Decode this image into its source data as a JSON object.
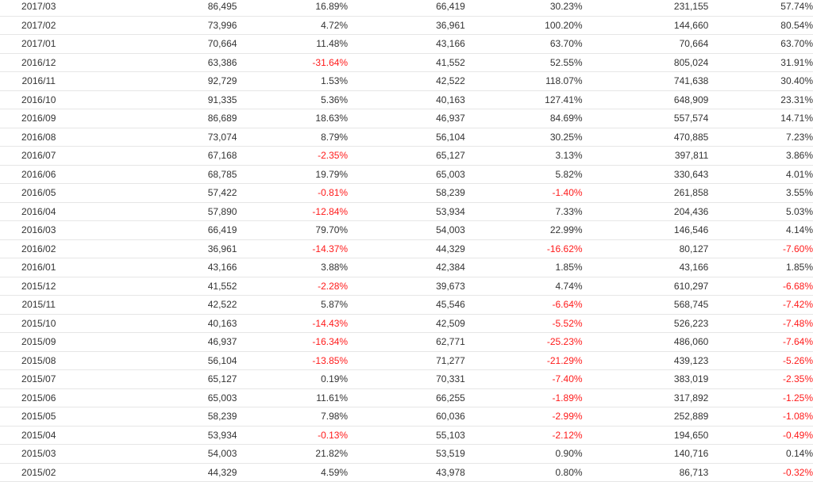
{
  "colors": {
    "text": "#333333",
    "negative": "#ff1a1a",
    "row_border": "#e6e6e6"
  },
  "rows": [
    {
      "date": "2017/03",
      "v1": "86,495",
      "p1": "16.89%",
      "v2": "66,419",
      "p2": "30.23%",
      "v3": "231,155",
      "p3": "57.74%"
    },
    {
      "date": "2017/02",
      "v1": "73,996",
      "p1": "4.72%",
      "v2": "36,961",
      "p2": "100.20%",
      "v3": "144,660",
      "p3": "80.54%"
    },
    {
      "date": "2017/01",
      "v1": "70,664",
      "p1": "11.48%",
      "v2": "43,166",
      "p2": "63.70%",
      "v3": "70,664",
      "p3": "63.70%"
    },
    {
      "date": "2016/12",
      "v1": "63,386",
      "p1": "-31.64%",
      "v2": "41,552",
      "p2": "52.55%",
      "v3": "805,024",
      "p3": "31.91%"
    },
    {
      "date": "2016/11",
      "v1": "92,729",
      "p1": "1.53%",
      "v2": "42,522",
      "p2": "118.07%",
      "v3": "741,638",
      "p3": "30.40%"
    },
    {
      "date": "2016/10",
      "v1": "91,335",
      "p1": "5.36%",
      "v2": "40,163",
      "p2": "127.41%",
      "v3": "648,909",
      "p3": "23.31%"
    },
    {
      "date": "2016/09",
      "v1": "86,689",
      "p1": "18.63%",
      "v2": "46,937",
      "p2": "84.69%",
      "v3": "557,574",
      "p3": "14.71%"
    },
    {
      "date": "2016/08",
      "v1": "73,074",
      "p1": "8.79%",
      "v2": "56,104",
      "p2": "30.25%",
      "v3": "470,885",
      "p3": "7.23%"
    },
    {
      "date": "2016/07",
      "v1": "67,168",
      "p1": "-2.35%",
      "v2": "65,127",
      "p2": "3.13%",
      "v3": "397,811",
      "p3": "3.86%"
    },
    {
      "date": "2016/06",
      "v1": "68,785",
      "p1": "19.79%",
      "v2": "65,003",
      "p2": "5.82%",
      "v3": "330,643",
      "p3": "4.01%"
    },
    {
      "date": "2016/05",
      "v1": "57,422",
      "p1": "-0.81%",
      "v2": "58,239",
      "p2": "-1.40%",
      "v3": "261,858",
      "p3": "3.55%"
    },
    {
      "date": "2016/04",
      "v1": "57,890",
      "p1": "-12.84%",
      "v2": "53,934",
      "p2": "7.33%",
      "v3": "204,436",
      "p3": "5.03%"
    },
    {
      "date": "2016/03",
      "v1": "66,419",
      "p1": "79.70%",
      "v2": "54,003",
      "p2": "22.99%",
      "v3": "146,546",
      "p3": "4.14%"
    },
    {
      "date": "2016/02",
      "v1": "36,961",
      "p1": "-14.37%",
      "v2": "44,329",
      "p2": "-16.62%",
      "v3": "80,127",
      "p3": "-7.60%"
    },
    {
      "date": "2016/01",
      "v1": "43,166",
      "p1": "3.88%",
      "v2": "42,384",
      "p2": "1.85%",
      "v3": "43,166",
      "p3": "1.85%"
    },
    {
      "date": "2015/12",
      "v1": "41,552",
      "p1": "-2.28%",
      "v2": "39,673",
      "p2": "4.74%",
      "v3": "610,297",
      "p3": "-6.68%"
    },
    {
      "date": "2015/11",
      "v1": "42,522",
      "p1": "5.87%",
      "v2": "45,546",
      "p2": "-6.64%",
      "v3": "568,745",
      "p3": "-7.42%"
    },
    {
      "date": "2015/10",
      "v1": "40,163",
      "p1": "-14.43%",
      "v2": "42,509",
      "p2": "-5.52%",
      "v3": "526,223",
      "p3": "-7.48%"
    },
    {
      "date": "2015/09",
      "v1": "46,937",
      "p1": "-16.34%",
      "v2": "62,771",
      "p2": "-25.23%",
      "v3": "486,060",
      "p3": "-7.64%"
    },
    {
      "date": "2015/08",
      "v1": "56,104",
      "p1": "-13.85%",
      "v2": "71,277",
      "p2": "-21.29%",
      "v3": "439,123",
      "p3": "-5.26%"
    },
    {
      "date": "2015/07",
      "v1": "65,127",
      "p1": "0.19%",
      "v2": "70,331",
      "p2": "-7.40%",
      "v3": "383,019",
      "p3": "-2.35%"
    },
    {
      "date": "2015/06",
      "v1": "65,003",
      "p1": "11.61%",
      "v2": "66,255",
      "p2": "-1.89%",
      "v3": "317,892",
      "p3": "-1.25%"
    },
    {
      "date": "2015/05",
      "v1": "58,239",
      "p1": "7.98%",
      "v2": "60,036",
      "p2": "-2.99%",
      "v3": "252,889",
      "p3": "-1.08%"
    },
    {
      "date": "2015/04",
      "v1": "53,934",
      "p1": "-0.13%",
      "v2": "55,103",
      "p2": "-2.12%",
      "v3": "194,650",
      "p3": "-0.49%"
    },
    {
      "date": "2015/03",
      "v1": "54,003",
      "p1": "21.82%",
      "v2": "53,519",
      "p2": "0.90%",
      "v3": "140,716",
      "p3": "0.14%"
    },
    {
      "date": "2015/02",
      "v1": "44,329",
      "p1": "4.59%",
      "v2": "43,978",
      "p2": "0.80%",
      "v3": "86,713",
      "p3": "-0.32%"
    }
  ]
}
